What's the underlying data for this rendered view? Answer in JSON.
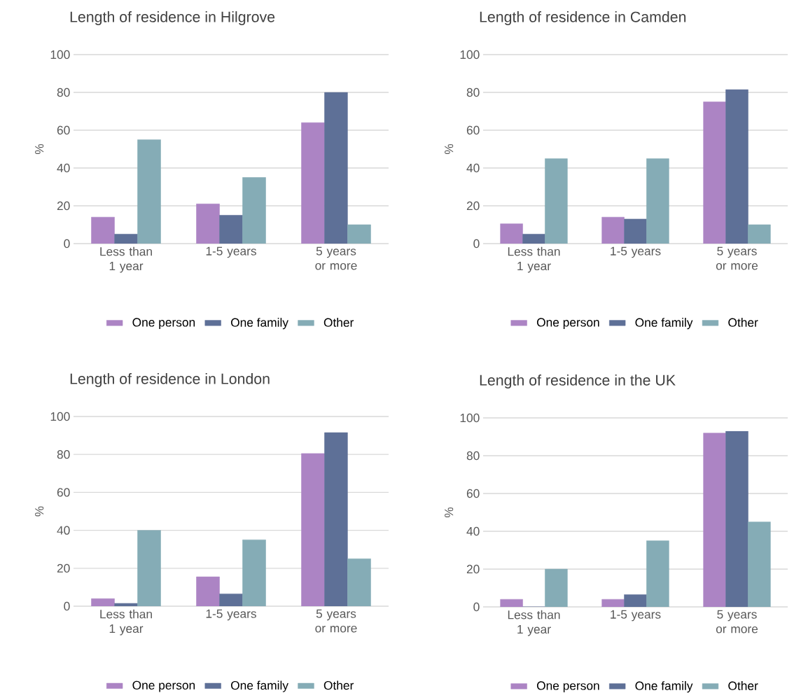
{
  "chart_data": [
    {
      "type": "bar",
      "title": "Length of residence in Hilgrove",
      "ylabel": "%",
      "categories": [
        "Less than 1 year",
        "1-5 years",
        "5 years or more"
      ],
      "ylim": [
        0,
        100
      ],
      "yticks": [
        0,
        20,
        40,
        60,
        80,
        100
      ],
      "grid": "y",
      "legend": "bottom",
      "series": [
        {
          "name": "One person",
          "color": "#ac84c4",
          "values": [
            14,
            21,
            64
          ]
        },
        {
          "name": "One family",
          "color": "#5e7097",
          "values": [
            5,
            15,
            80
          ]
        },
        {
          "name": "Other",
          "color": "#85acb6",
          "values": [
            55,
            35,
            10
          ]
        }
      ]
    },
    {
      "type": "bar",
      "title": "Length of residence in Camden",
      "ylabel": "%",
      "categories": [
        "Less than 1 year",
        "1-5 years",
        "5 years or more"
      ],
      "ylim": [
        0,
        100
      ],
      "yticks": [
        0,
        20,
        40,
        60,
        80,
        100
      ],
      "grid": "y",
      "legend": "bottom",
      "series": [
        {
          "name": "One person",
          "color": "#ac84c4",
          "values": [
            10.5,
            14,
            75
          ]
        },
        {
          "name": "One family",
          "color": "#5e7097",
          "values": [
            5,
            13,
            81.5
          ]
        },
        {
          "name": "Other",
          "color": "#85acb6",
          "values": [
            45,
            45,
            10
          ]
        }
      ]
    },
    {
      "type": "bar",
      "title": "Length of residence in London",
      "ylabel": "%",
      "categories": [
        "Less than 1 year",
        "1-5 years",
        "5 years or more"
      ],
      "ylim": [
        0,
        100
      ],
      "yticks": [
        0,
        20,
        40,
        60,
        80,
        100
      ],
      "grid": "y",
      "legend": "bottom",
      "series": [
        {
          "name": "One person",
          "color": "#ac84c4",
          "values": [
            4,
            15.5,
            80.5
          ]
        },
        {
          "name": "One family",
          "color": "#5e7097",
          "values": [
            1.5,
            6.5,
            91.5
          ]
        },
        {
          "name": "Other",
          "color": "#85acb6",
          "values": [
            40,
            35,
            25
          ]
        }
      ]
    },
    {
      "type": "bar",
      "title": "Length of residence in the UK",
      "ylabel": "%",
      "categories": [
        "Less than 1 year",
        "1-5 years",
        "5 years or more"
      ],
      "ylim": [
        0,
        100
      ],
      "yticks": [
        0,
        20,
        40,
        60,
        80,
        100
      ],
      "grid": "y",
      "legend": "bottom",
      "series": [
        {
          "name": "One person",
          "color": "#ac84c4",
          "values": [
            4,
            4,
            92
          ]
        },
        {
          "name": "One family",
          "color": "#5e7097",
          "values": [
            0,
            6.5,
            93
          ]
        },
        {
          "name": "Other",
          "color": "#85acb6",
          "values": [
            20,
            35,
            45
          ]
        }
      ]
    }
  ]
}
